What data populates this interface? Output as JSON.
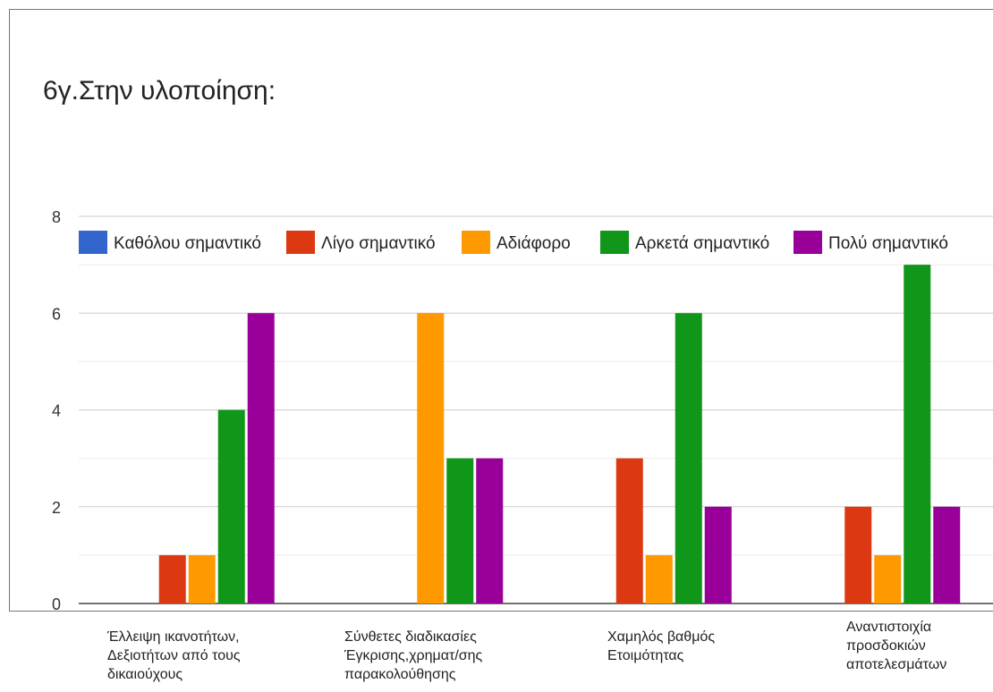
{
  "chart_data": {
    "type": "bar",
    "title": "6γ.Στην υλοποίηση:",
    "categories": [
      [
        "Έλλειψη ικανοτήτων,",
        "Δεξιοτήτων από τους",
        "δικαιούχους"
      ],
      [
        "Σύνθετες διαδικασίες",
        "Έγκρισης,χρηματ/σης",
        "παρακολούθησης"
      ],
      [
        "Χαμηλός βαθμός",
        "Ετοιμότητας"
      ],
      [
        "Αναντιστοιχία",
        "προσδοκιών",
        "αποτελεσμάτων"
      ]
    ],
    "series": [
      {
        "name": "Καθόλου σημαντικό",
        "color": "#3366cc",
        "values": [
          0,
          0,
          0,
          0
        ]
      },
      {
        "name": "Λίγο σημαντικό",
        "color": "#dc3912",
        "values": [
          1,
          0,
          3,
          2
        ]
      },
      {
        "name": "Αδιάφορο",
        "color": "#ff9900",
        "values": [
          1,
          6,
          1,
          1
        ]
      },
      {
        "name": "Αρκετά σημαντικό",
        "color": "#109618",
        "values": [
          4,
          3,
          6,
          7
        ]
      },
      {
        "name": "Πολύ σημαντικό",
        "color": "#990099",
        "values": [
          6,
          3,
          2,
          2
        ]
      }
    ],
    "yticks": [
      0,
      2,
      4,
      6,
      8
    ],
    "ylim": [
      0,
      8
    ],
    "grid": true,
    "legend_position": "top"
  }
}
